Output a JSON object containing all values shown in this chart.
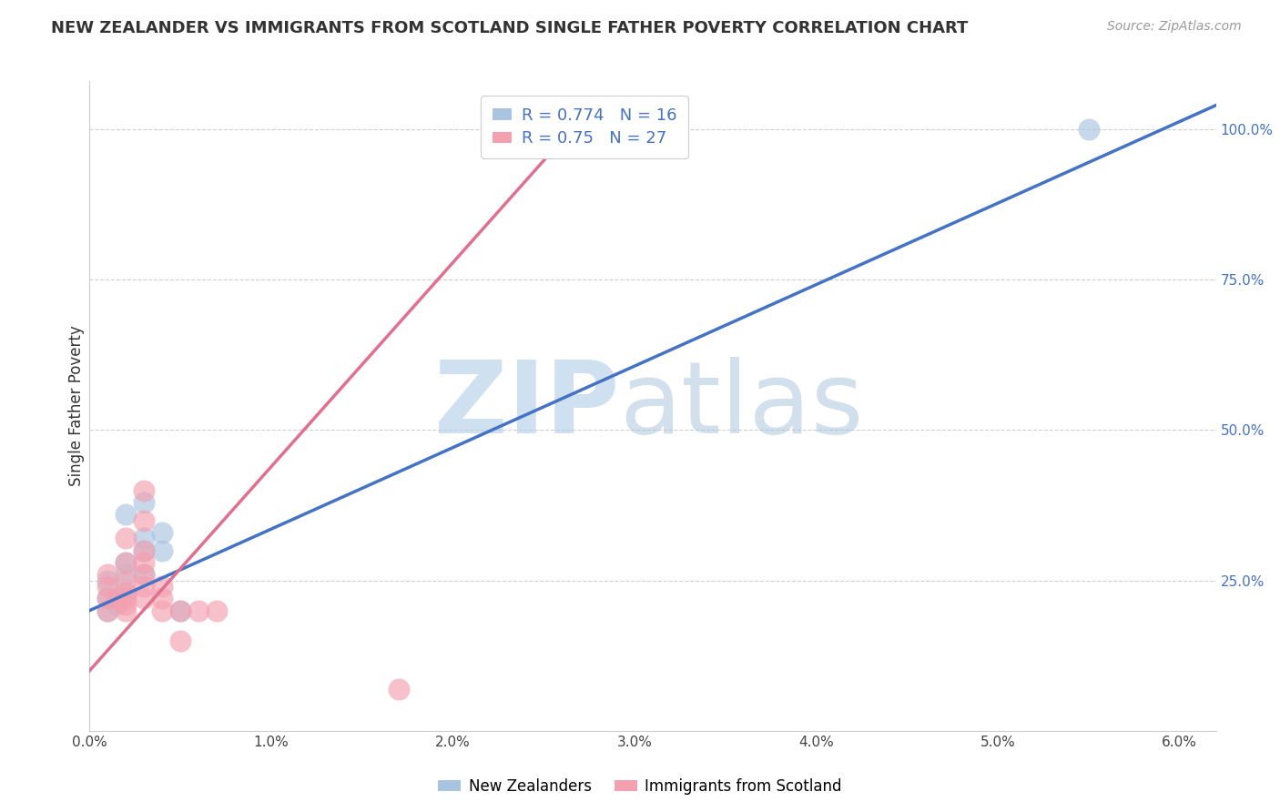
{
  "title": "NEW ZEALANDER VS IMMIGRANTS FROM SCOTLAND SINGLE FATHER POVERTY CORRELATION CHART",
  "source": "Source: ZipAtlas.com",
  "ylabel": "Single Father Poverty",
  "xlim": [
    0.0,
    0.062
  ],
  "ylim": [
    0.0,
    1.08
  ],
  "xtick_vals": [
    0.0,
    0.01,
    0.02,
    0.03,
    0.04,
    0.05,
    0.06
  ],
  "ytick_vals": [
    0.25,
    0.5,
    0.75,
    1.0
  ],
  "nz_color": "#a8c4e0",
  "scot_color": "#f4a0b0",
  "nz_R": 0.774,
  "nz_N": 16,
  "scot_R": 0.75,
  "scot_N": 27,
  "nz_line_color": "#4472c4",
  "scot_line_color": "#e07090",
  "nz_x": [
    0.001,
    0.001,
    0.001,
    0.0015,
    0.002,
    0.002,
    0.002,
    0.002,
    0.003,
    0.003,
    0.003,
    0.003,
    0.004,
    0.004,
    0.005,
    0.055
  ],
  "nz_y": [
    0.2,
    0.22,
    0.25,
    0.21,
    0.23,
    0.26,
    0.28,
    0.36,
    0.26,
    0.3,
    0.38,
    0.32,
    0.3,
    0.33,
    0.2,
    1.0
  ],
  "scot_x": [
    0.001,
    0.001,
    0.001,
    0.001,
    0.0015,
    0.002,
    0.002,
    0.002,
    0.002,
    0.002,
    0.002,
    0.002,
    0.003,
    0.003,
    0.003,
    0.003,
    0.003,
    0.003,
    0.003,
    0.004,
    0.004,
    0.004,
    0.005,
    0.005,
    0.006,
    0.007,
    0.017
  ],
  "scot_y": [
    0.2,
    0.22,
    0.24,
    0.26,
    0.22,
    0.2,
    0.21,
    0.22,
    0.23,
    0.25,
    0.28,
    0.32,
    0.22,
    0.24,
    0.26,
    0.28,
    0.3,
    0.35,
    0.4,
    0.2,
    0.22,
    0.24,
    0.15,
    0.2,
    0.2,
    0.2,
    0.07
  ],
  "nz_line_x": [
    0.0,
    0.062
  ],
  "nz_line_y": [
    0.2,
    1.04
  ],
  "scot_line_x": [
    0.0,
    0.028
  ],
  "scot_line_y": [
    0.1,
    1.05
  ],
  "background_color": "#ffffff",
  "grid_color": "#d0d0d0"
}
